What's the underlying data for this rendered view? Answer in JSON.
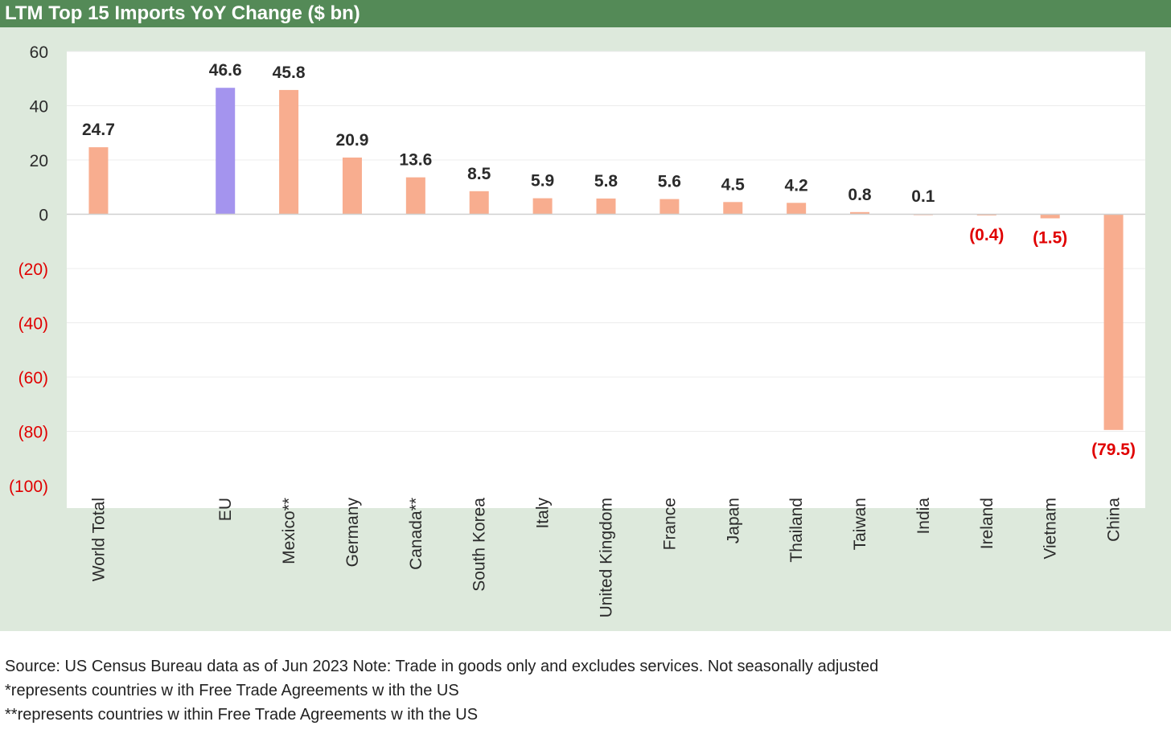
{
  "title": "LTM Top 15 Imports YoY Change ($ bn)",
  "notes": [
    "Source: US Census Bureau data as of Jun 2023 Note: Trade in goods only and excludes services. Not seasonally adjusted",
    "*represents countries w ith Free Trade Agreements w ith the US",
    "**represents countries w ithin Free Trade Agreements w ith the US"
  ],
  "colors": {
    "title_bg": "#548a57",
    "chart_bg": "#dde9dc",
    "plot_bg": "#ffffff",
    "bar_default": "#f8ad8f",
    "bar_highlight": "#a494ee",
    "positive_text": "#2b2b2b",
    "negative_text": "#e00000"
  },
  "chart_data": {
    "type": "bar",
    "categories": [
      "World Total",
      "",
      "EU",
      "Mexico**",
      "Germany",
      "Canada**",
      "South Korea",
      "Italy",
      "United Kingdom",
      "France",
      "Japan",
      "Thailand",
      "Taiwan",
      "India",
      "Ireland",
      "Vietnam",
      "China"
    ],
    "values": [
      24.7,
      null,
      46.6,
      45.8,
      20.9,
      13.6,
      8.5,
      5.9,
      5.8,
      5.6,
      4.5,
      4.2,
      0.8,
      0.1,
      -0.4,
      -1.5,
      -79.5
    ],
    "data_labels": [
      "24.7",
      "",
      "46.6",
      "45.8",
      "20.9",
      "13.6",
      "8.5",
      "5.9",
      "5.8",
      "5.6",
      "4.5",
      "4.2",
      "0.8",
      "0.1",
      "(0.4)",
      "(1.5)",
      "(79.5)"
    ],
    "highlight": [
      "EU"
    ],
    "ylim": [
      -100,
      60
    ],
    "yticks": [
      60,
      40,
      20,
      0,
      -20,
      -40,
      -60,
      -80,
      -100
    ],
    "ytick_labels": [
      "60",
      "40",
      "20",
      "0",
      "(20)",
      "(40)",
      "(60)",
      "(80)",
      "(100)"
    ],
    "grid": true,
    "legend": "none"
  }
}
